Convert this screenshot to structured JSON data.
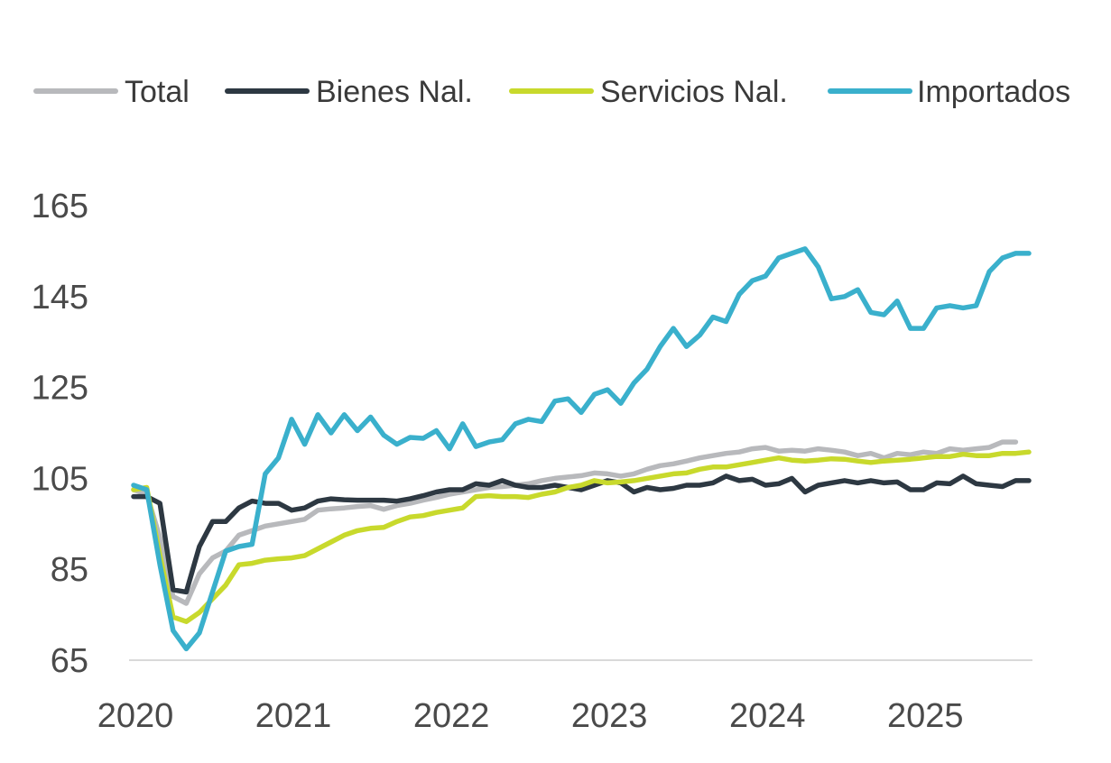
{
  "chart_data": {
    "type": "line",
    "title": "",
    "xlabel": "",
    "ylabel": "",
    "ylim": [
      65,
      165
    ],
    "yticks": [
      65,
      85,
      105,
      125,
      145,
      165
    ],
    "xlim": [
      0,
      70
    ],
    "xticks": [
      {
        "label": "2020",
        "pos": 0
      },
      {
        "label": "2021",
        "pos": 12
      },
      {
        "label": "2022",
        "pos": 24
      },
      {
        "label": "2023",
        "pos": 36
      },
      {
        "label": "2024",
        "pos": 48
      },
      {
        "label": "2025",
        "pos": 60
      }
    ],
    "grid": false,
    "legend": "top",
    "series": [
      {
        "name": "Total",
        "color": "#b8b9bc",
        "values": [
          102.5,
          101.5,
          92.0,
          79.0,
          77.5,
          84.0,
          87.5,
          89.0,
          92.5,
          93.5,
          94.5,
          95.0,
          95.5,
          96.0,
          98.0,
          98.3,
          98.5,
          98.8,
          99.0,
          98.2,
          99.0,
          99.5,
          100.2,
          100.8,
          101.5,
          102.0,
          102.5,
          103.0,
          103.2,
          103.5,
          103.8,
          104.5,
          105.0,
          105.3,
          105.6,
          106.2,
          106.0,
          105.5,
          106.0,
          107.0,
          107.8,
          108.2,
          108.8,
          109.5,
          110.0,
          110.5,
          110.8,
          111.5,
          111.8,
          111.0,
          111.2,
          111.0,
          111.5,
          111.2,
          110.8,
          110.0,
          110.5,
          109.5,
          110.5,
          110.2,
          110.8,
          110.5,
          111.5,
          111.2,
          111.5,
          111.8,
          113.0,
          113.0
        ]
      },
      {
        "name": "Bienes Nal.",
        "color": "#2d3842",
        "values": [
          101.0,
          101.0,
          99.5,
          80.5,
          80.0,
          90.0,
          95.5,
          95.5,
          98.5,
          100.0,
          99.5,
          99.5,
          98.0,
          98.5,
          100.0,
          100.5,
          100.3,
          100.2,
          100.2,
          100.2,
          100.0,
          100.5,
          101.2,
          102.0,
          102.5,
          102.5,
          103.8,
          103.5,
          104.5,
          103.5,
          103.0,
          103.0,
          103.5,
          103.0,
          102.5,
          103.5,
          104.5,
          104.0,
          102.0,
          103.0,
          102.5,
          102.8,
          103.5,
          103.5,
          104.0,
          105.5,
          104.5,
          104.8,
          103.5,
          103.8,
          105.0,
          102.0,
          103.5,
          104.0,
          104.5,
          104.0,
          104.5,
          104.0,
          104.2,
          102.5,
          102.5,
          104.0,
          103.8,
          105.5,
          103.8,
          103.5,
          103.2,
          104.5,
          104.5
        ]
      },
      {
        "name": "Servicios Nal.",
        "color": "#c8d92c",
        "values": [
          102.5,
          103.0,
          88.0,
          74.5,
          73.5,
          75.5,
          78.5,
          81.5,
          86.0,
          86.3,
          87.0,
          87.3,
          87.5,
          88.0,
          89.5,
          91.0,
          92.5,
          93.5,
          94.0,
          94.2,
          95.5,
          96.5,
          96.8,
          97.5,
          98.0,
          98.5,
          101.0,
          101.2,
          101.0,
          101.0,
          100.8,
          101.5,
          102.0,
          103.0,
          103.5,
          104.5,
          104.0,
          104.2,
          104.5,
          105.0,
          105.5,
          106.0,
          106.2,
          107.0,
          107.5,
          107.5,
          108.0,
          108.5,
          109.0,
          109.5,
          109.0,
          108.8,
          109.0,
          109.3,
          109.2,
          108.8,
          108.5,
          108.8,
          109.0,
          109.2,
          109.5,
          109.8,
          109.8,
          110.3,
          110.0,
          110.0,
          110.5,
          110.5,
          110.8
        ]
      },
      {
        "name": "Importados",
        "color": "#3ab0cc",
        "values": [
          103.5,
          102.5,
          86.0,
          71.5,
          67.5,
          71.0,
          80.0,
          89.0,
          90.0,
          90.5,
          106.0,
          109.5,
          118.0,
          112.5,
          119.0,
          115.0,
          119.0,
          115.5,
          118.5,
          114.5,
          112.5,
          114.0,
          113.8,
          115.5,
          111.5,
          117.0,
          112.0,
          113.0,
          113.5,
          117.0,
          118.0,
          117.5,
          122.0,
          122.5,
          119.5,
          123.5,
          124.5,
          121.5,
          126.0,
          129.0,
          134.0,
          138.0,
          134.0,
          136.5,
          140.5,
          139.5,
          145.5,
          148.5,
          149.5,
          153.5,
          154.5,
          155.5,
          151.5,
          144.5,
          145.0,
          146.5,
          141.5,
          141.0,
          144.0,
          138.0,
          138.0,
          142.5,
          143.0,
          142.5,
          143.0,
          150.5,
          153.5,
          154.5,
          154.5
        ]
      }
    ]
  }
}
